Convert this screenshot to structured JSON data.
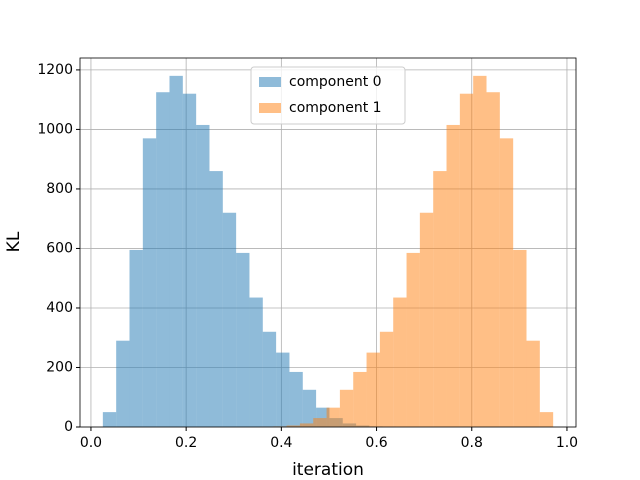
{
  "chart_data": {
    "type": "histogram",
    "x_label": "iteration",
    "y_label": "KL",
    "series": [
      {
        "name": "component 0",
        "color": "#1f77b4",
        "opacity": 0.5,
        "bins": [
          0.025,
          0.053,
          0.081,
          0.109,
          0.137,
          0.165,
          0.193,
          0.221,
          0.249,
          0.277,
          0.305,
          0.333,
          0.361,
          0.389,
          0.417,
          0.445,
          0.473,
          0.501,
          0.529,
          0.557,
          0.585,
          0.613,
          0.641
        ],
        "values": [
          50,
          290,
          595,
          970,
          1125,
          1180,
          1120,
          1015,
          860,
          720,
          585,
          435,
          320,
          250,
          185,
          125,
          65,
          30,
          12,
          5,
          2,
          1
        ]
      },
      {
        "name": "component 1",
        "color": "#ff7f0e",
        "opacity": 0.5,
        "bins": [
          0.355,
          0.383,
          0.411,
          0.439,
          0.467,
          0.495,
          0.523,
          0.551,
          0.579,
          0.607,
          0.635,
          0.663,
          0.691,
          0.719,
          0.747,
          0.775,
          0.803,
          0.831,
          0.859,
          0.887,
          0.915,
          0.943,
          0.971
        ],
        "values": [
          1,
          2,
          5,
          12,
          30,
          65,
          125,
          185,
          250,
          320,
          435,
          585,
          720,
          860,
          1015,
          1120,
          1180,
          1125,
          970,
          595,
          290,
          50
        ]
      }
    ],
    "xlim": [
      -0.023,
      1.019
    ],
    "ylim": [
      0,
      1240
    ],
    "xticks": [
      {
        "value": 0,
        "label": "0.0"
      },
      0.2,
      0.4,
      0.6,
      0.8,
      {
        "value": 1,
        "label": "1.0"
      }
    ],
    "yticks": [
      0,
      200,
      400,
      600,
      800,
      1000,
      1200
    ],
    "grid": true,
    "legend": "upper center"
  }
}
